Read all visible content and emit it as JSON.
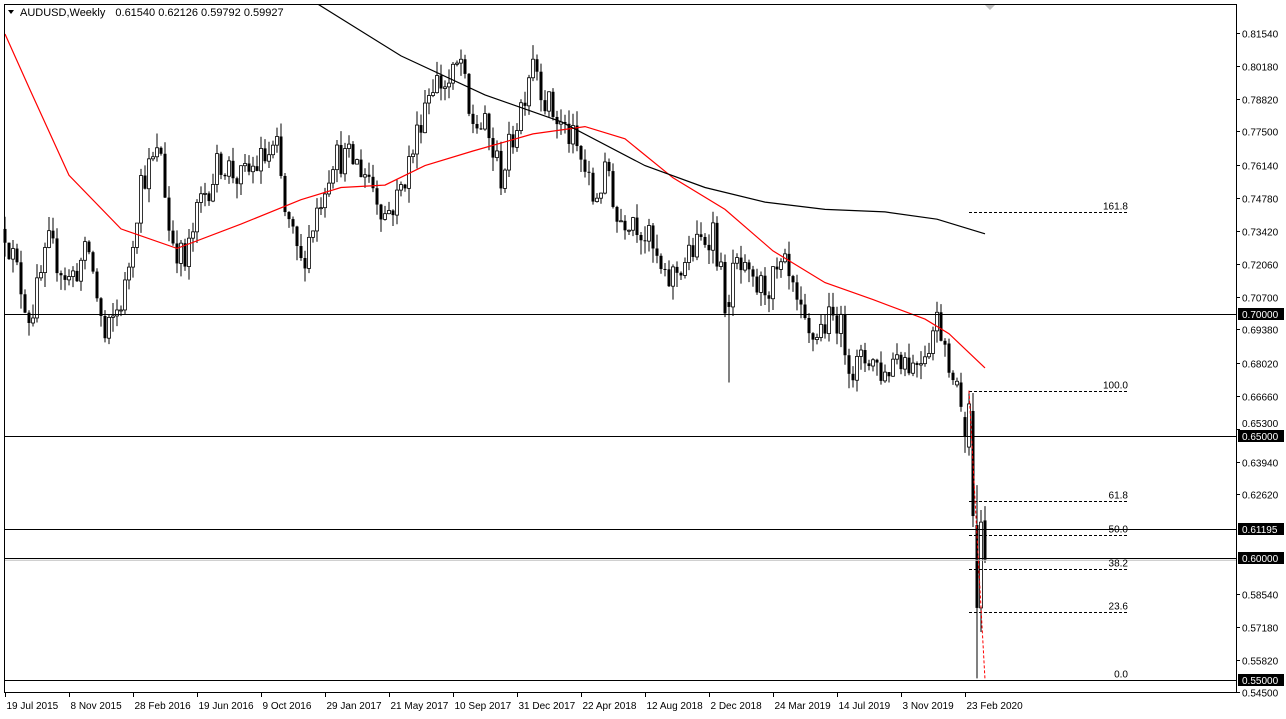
{
  "header": {
    "symbol_timeframe": "AUDUSD,Weekly",
    "ohlc": "0.61540 0.62126 0.59792 0.59927"
  },
  "colors": {
    "background": "#ffffff",
    "bull_candle": "#ffffff",
    "bear_candle": "#000000",
    "ma_fast": "#ff0000",
    "ma_slow": "#000000",
    "fib": "#000000",
    "trendline": "#ff0000",
    "price_label_bg": "#000000"
  },
  "chart_data": {
    "type": "candlestick",
    "symbol": "AUDUSD",
    "timeframe": "Weekly",
    "ylim": [
      0.545,
      0.8154
    ],
    "xlim": [
      "2015-07-19",
      "2020-03-29"
    ],
    "grid": false,
    "y_tick_labels": [
      "0.81540",
      "0.80180",
      "0.78820",
      "0.77500",
      "0.76140",
      "0.74780",
      "0.73420",
      "0.72060",
      "0.70700",
      "0.69380",
      "0.68020",
      "0.66660",
      "0.65300",
      "0.63940",
      "0.62620",
      "0.58540",
      "0.57180",
      "0.55820",
      "0.54500"
    ],
    "x_tick_labels": [
      {
        "date": "2015-07-19",
        "label": "19 Jul 2015"
      },
      {
        "date": "2015-11-08",
        "label": "8 Nov 2015"
      },
      {
        "date": "2016-02-28",
        "label": "28 Feb 2016"
      },
      {
        "date": "2016-06-19",
        "label": "19 Jun 2016"
      },
      {
        "date": "2016-10-09",
        "label": "9 Oct 2016"
      },
      {
        "date": "2017-01-29",
        "label": "29 Jan 2017"
      },
      {
        "date": "2017-05-21",
        "label": "21 May 2017"
      },
      {
        "date": "2017-09-10",
        "label": "10 Sep 2017"
      },
      {
        "date": "2017-12-31",
        "label": "31 Dec 2017"
      },
      {
        "date": "2018-04-22",
        "label": "22 Apr 2018"
      },
      {
        "date": "2018-08-12",
        "label": "12 Aug 2018"
      },
      {
        "date": "2018-12-02",
        "label": "2 Dec 2018"
      },
      {
        "date": "2019-03-24",
        "label": "24 Mar 2019"
      },
      {
        "date": "2019-07-14",
        "label": "14 Jul 2019"
      },
      {
        "date": "2019-11-03",
        "label": "3 Nov 2019"
      },
      {
        "date": "2020-02-23",
        "label": "23 Feb 2020"
      }
    ],
    "approx_weekly_closes": [
      [
        "2015-07-19",
        0.735
      ],
      [
        "2015-09-01",
        0.698
      ],
      [
        "2015-10-04",
        0.728
      ],
      [
        "2015-11-08",
        0.714
      ],
      [
        "2015-12-13",
        0.726
      ],
      [
        "2016-01-10",
        0.689
      ],
      [
        "2016-02-14",
        0.71
      ],
      [
        "2016-03-13",
        0.755
      ],
      [
        "2016-04-17",
        0.767
      ],
      [
        "2016-05-01",
        0.735
      ],
      [
        "2016-05-29",
        0.72
      ],
      [
        "2016-06-26",
        0.747
      ],
      [
        "2016-07-31",
        0.763
      ],
      [
        "2016-09-04",
        0.755
      ],
      [
        "2016-10-09",
        0.763
      ],
      [
        "2016-11-06",
        0.767
      ],
      [
        "2016-11-20",
        0.741
      ],
      [
        "2016-12-18",
        0.72
      ],
      [
        "2017-01-15",
        0.743
      ],
      [
        "2017-02-12",
        0.765
      ],
      [
        "2017-03-19",
        0.763
      ],
      [
        "2017-04-16",
        0.757
      ],
      [
        "2017-05-14",
        0.741
      ],
      [
        "2017-06-04",
        0.747
      ],
      [
        "2017-07-02",
        0.767
      ],
      [
        "2017-07-23",
        0.788
      ],
      [
        "2017-08-06",
        0.796
      ],
      [
        "2017-09-03",
        0.794
      ],
      [
        "2017-09-24",
        0.804
      ],
      [
        "2017-10-08",
        0.78
      ],
      [
        "2017-11-05",
        0.776
      ],
      [
        "2017-12-03",
        0.757
      ],
      [
        "2017-12-17",
        0.767
      ],
      [
        "2018-01-14",
        0.792
      ],
      [
        "2018-01-28",
        0.808
      ],
      [
        "2018-02-18",
        0.788
      ],
      [
        "2018-03-11",
        0.78
      ],
      [
        "2018-04-08",
        0.771
      ],
      [
        "2018-04-29",
        0.759
      ],
      [
        "2018-05-13",
        0.747
      ],
      [
        "2018-06-10",
        0.759
      ],
      [
        "2018-06-24",
        0.739
      ],
      [
        "2018-07-22",
        0.741
      ],
      [
        "2018-08-19",
        0.73
      ],
      [
        "2018-09-16",
        0.712
      ],
      [
        "2018-10-07",
        0.718
      ],
      [
        "2018-11-04",
        0.726
      ],
      [
        "2018-12-09",
        0.735
      ],
      [
        "2018-12-30",
        0.706
      ],
      [
        "2019-01-20",
        0.72
      ],
      [
        "2019-02-17",
        0.71
      ],
      [
        "2019-03-17",
        0.712
      ],
      [
        "2019-04-14",
        0.718
      ],
      [
        "2019-05-05",
        0.702
      ],
      [
        "2019-05-26",
        0.689
      ],
      [
        "2019-06-23",
        0.696
      ],
      [
        "2019-07-14",
        0.699
      ],
      [
        "2019-08-11",
        0.677
      ],
      [
        "2019-09-08",
        0.683
      ],
      [
        "2019-10-06",
        0.675
      ],
      [
        "2019-10-27",
        0.685
      ],
      [
        "2019-11-24",
        0.679
      ],
      [
        "2019-12-22",
        0.689
      ],
      [
        "2020-01-05",
        0.698
      ],
      [
        "2020-01-19",
        0.69
      ]
    ],
    "candles": [
      {
        "date": "2019-01-06",
        "open": 0.705,
        "high": 0.708,
        "low": 0.672,
        "close": 0.703
      },
      {
        "date": "2020-01-26",
        "open": 0.688,
        "high": 0.69,
        "low": 0.674,
        "close": 0.676
      },
      {
        "date": "2020-02-02",
        "open": 0.676,
        "high": 0.677,
        "low": 0.671,
        "close": 0.673
      },
      {
        "date": "2020-02-09",
        "open": 0.671,
        "high": 0.674,
        "low": 0.67,
        "close": 0.6725
      },
      {
        "date": "2020-02-16",
        "open": 0.672,
        "high": 0.676,
        "low": 0.66,
        "close": 0.662
      },
      {
        "date": "2020-02-23",
        "open": 0.6578,
        "high": 0.66,
        "low": 0.6431,
        "close": 0.65
      },
      {
        "date": "2020-03-01",
        "open": 0.6455,
        "high": 0.6686,
        "low": 0.642,
        "close": 0.6632
      },
      {
        "date": "2020-03-08",
        "open": 0.6603,
        "high": 0.6677,
        "low": 0.6127,
        "close": 0.6172
      },
      {
        "date": "2020-03-15",
        "open": 0.6135,
        "high": 0.6299,
        "low": 0.5506,
        "close": 0.5795
      },
      {
        "date": "2020-03-22",
        "open": 0.5795,
        "high": 0.6197,
        "low": 0.5696,
        "close": 0.6147
      },
      {
        "date": "2020-03-29",
        "open": 0.6154,
        "high": 0.62126,
        "low": 0.59792,
        "close": 0.59927
      }
    ],
    "moving_averages": [
      {
        "color": "#ff0000",
        "points": [
          [
            "2015-07-19",
            0.815
          ],
          [
            "2015-09-01",
            0.792
          ],
          [
            "2015-11-08",
            0.757
          ],
          [
            "2016-02-07",
            0.735
          ],
          [
            "2016-05-15",
            0.727
          ],
          [
            "2016-09-04",
            0.737
          ],
          [
            "2016-12-18",
            0.747
          ],
          [
            "2017-02-26",
            0.752
          ],
          [
            "2017-05-14",
            0.753
          ],
          [
            "2017-07-23",
            0.761
          ],
          [
            "2017-10-15",
            0.767
          ],
          [
            "2018-01-28",
            0.774
          ],
          [
            "2018-04-29",
            0.777
          ],
          [
            "2018-07-08",
            0.772
          ],
          [
            "2018-09-30",
            0.756
          ],
          [
            "2018-12-30",
            0.743
          ],
          [
            "2019-03-24",
            0.726
          ],
          [
            "2019-06-23",
            0.713
          ],
          [
            "2019-09-15",
            0.706
          ],
          [
            "2019-12-15",
            0.698
          ],
          [
            "2020-01-26",
            0.692
          ],
          [
            "2020-03-29",
            0.678
          ]
        ]
      },
      {
        "color": "#000000",
        "points": [
          [
            "2017-01-08",
            0.8285
          ],
          [
            "2017-06-11",
            0.806
          ],
          [
            "2017-11-05",
            0.79
          ],
          [
            "2018-03-18",
            0.779
          ],
          [
            "2018-08-12",
            0.761
          ],
          [
            "2018-11-25",
            0.752
          ],
          [
            "2019-03-10",
            0.746
          ],
          [
            "2019-06-23",
            0.743
          ],
          [
            "2019-10-06",
            0.742
          ],
          [
            "2020-01-05",
            0.739
          ],
          [
            "2020-03-29",
            0.733
          ]
        ]
      }
    ],
    "horizontal_lines": [
      {
        "price": 0.7,
        "label": "0.70000"
      },
      {
        "price": 0.65,
        "label": "0.65000"
      },
      {
        "price": 0.61195,
        "label": "0.61195"
      },
      {
        "price": 0.6,
        "label": "0.60000"
      },
      {
        "price": 0.55,
        "label": "0.55000"
      }
    ],
    "bid_line": 0.59927,
    "fibonacci": {
      "from": {
        "date": "2020-03-01",
        "price": 0.6686
      },
      "to": {
        "date": "2020-03-29",
        "price": 0.55
      },
      "levels": [
        {
          "ratio": 0.0,
          "label": "0.0"
        },
        {
          "ratio": 0.236,
          "label": "23.6"
        },
        {
          "ratio": 0.382,
          "label": "38.2"
        },
        {
          "ratio": 0.5,
          "label": "50.0"
        },
        {
          "ratio": 0.618,
          "label": "61.8"
        },
        {
          "ratio": 1.0,
          "label": "100.0"
        },
        {
          "ratio": 1.618,
          "label": "161.8"
        }
      ]
    }
  }
}
